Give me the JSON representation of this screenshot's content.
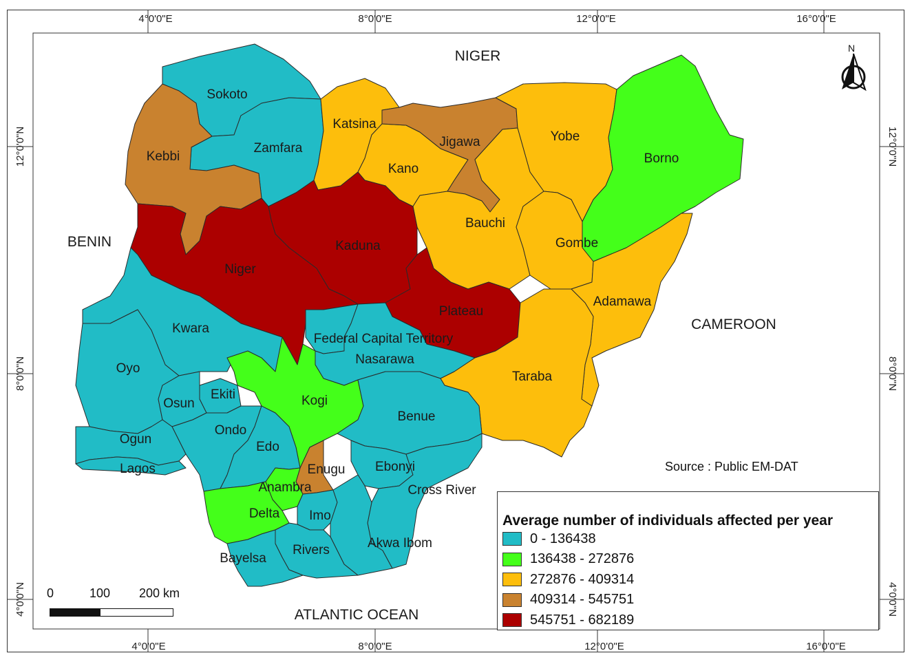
{
  "colors": {
    "class_1": "#21bcc6",
    "class_2": "#44ff1a",
    "class_3": "#fdbe0c",
    "class_4": "#c9822f",
    "class_5": "#ac0000",
    "background": "#ffffff"
  },
  "graticule": {
    "top_longitudes": [
      "4°0'0\"E",
      "8°0'0\"E",
      "12°0'0\"E",
      "16°0'0\"E"
    ],
    "bottom_longitudes": [
      "4°0'0\"E",
      "8°0'0\"E",
      "12°0'0\"E",
      "16°0'0\"E"
    ],
    "left_latitudes": [
      "12°0'0\"N",
      "8°0'0\"N",
      "4°0'0\"N"
    ],
    "right_latitudes": [
      "12°0'0\"N",
      "8°0'0\"N",
      "4°0'0\"N"
    ]
  },
  "neighbors": [
    "NIGER",
    "BENIN",
    "CAMEROON",
    "ATLANTIC OCEAN"
  ],
  "states": [
    {
      "name": "Sokoto",
      "class": 1
    },
    {
      "name": "Zamfara",
      "class": 1
    },
    {
      "name": "Kebbi",
      "class": 4
    },
    {
      "name": "Katsina",
      "class": 3
    },
    {
      "name": "Kano",
      "class": 3
    },
    {
      "name": "Jigawa",
      "class": 4
    },
    {
      "name": "Yobe",
      "class": 3
    },
    {
      "name": "Borno",
      "class": 2
    },
    {
      "name": "Bauchi",
      "class": 3
    },
    {
      "name": "Gombe",
      "class": 3
    },
    {
      "name": "Kaduna",
      "class": 5
    },
    {
      "name": "Niger",
      "class": 5
    },
    {
      "name": "Plateau",
      "class": 5
    },
    {
      "name": "Adamawa",
      "class": 3
    },
    {
      "name": "Kwara",
      "class": 1
    },
    {
      "name": "Federal Capital Territory",
      "class": 1
    },
    {
      "name": "Nasarawa",
      "class": 1
    },
    {
      "name": "Oyo",
      "class": 1
    },
    {
      "name": "Taraba",
      "class": 3
    },
    {
      "name": "Ekiti",
      "class": 1
    },
    {
      "name": "Osun",
      "class": 1
    },
    {
      "name": "Kogi",
      "class": 2
    },
    {
      "name": "Benue",
      "class": 1
    },
    {
      "name": "Ondo",
      "class": 1
    },
    {
      "name": "Ogun",
      "class": 1
    },
    {
      "name": "Edo",
      "class": 1
    },
    {
      "name": "Lagos",
      "class": 1
    },
    {
      "name": "Enugu",
      "class": 4
    },
    {
      "name": "Ebonyi",
      "class": 1
    },
    {
      "name": "Anambra",
      "class": 2
    },
    {
      "name": "Cross River",
      "class": 1
    },
    {
      "name": "Delta",
      "class": 2
    },
    {
      "name": "Imo",
      "class": 1
    },
    {
      "name": "Akwa Ibom",
      "class": 1
    },
    {
      "name": "Rivers",
      "class": 1
    },
    {
      "name": "Bayelsa",
      "class": 1
    }
  ],
  "legend": {
    "title": "Average number of individuals affected per year",
    "classes": [
      {
        "label": "0 - 136438",
        "color": "#21bcc6"
      },
      {
        "label": "136438 - 272876",
        "color": "#44ff1a"
      },
      {
        "label": "272876 - 409314",
        "color": "#fdbe0c"
      },
      {
        "label": "409314 - 545751",
        "color": "#c9822f"
      },
      {
        "label": "545751 - 682189",
        "color": "#ac0000"
      }
    ]
  },
  "source": "Source : Public EM-DAT",
  "scale_bar": {
    "labels": [
      "0",
      "100",
      "200 km"
    ]
  },
  "north_arrow": {
    "label": "N"
  }
}
